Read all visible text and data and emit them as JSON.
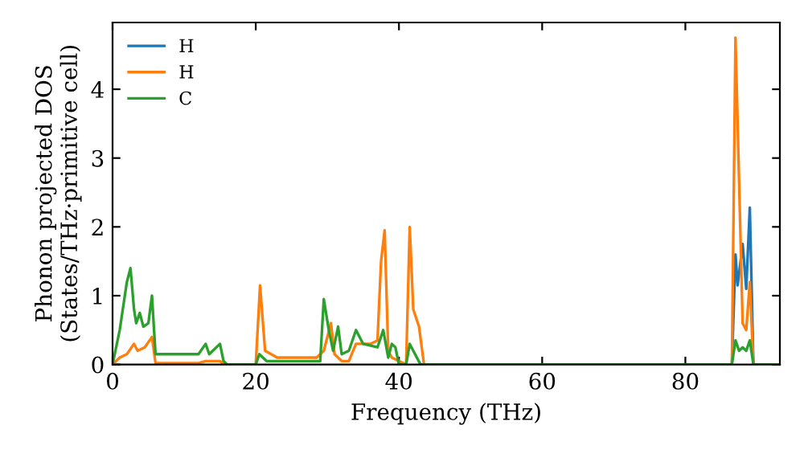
{
  "chart_data": {
    "type": "line",
    "xlabel": "Frequency (THz)",
    "ylabel": "Phonon projected DOS\n(States/THz·primitive cell)",
    "xlim": [
      0,
      93.2
    ],
    "ylim": [
      0,
      4.97
    ],
    "xticks": [
      0,
      20,
      40,
      60,
      80
    ],
    "yticks": [
      0,
      1,
      2,
      3,
      4
    ],
    "grid": false,
    "legend": "top left",
    "marker": "none",
    "line_style": "solid",
    "series": [
      {
        "name": "H",
        "color": "#1f77b4",
        "x": [
          86.5,
          87,
          87.3,
          88,
          88.5,
          89,
          89.5
        ],
        "values": [
          0,
          1.6,
          1.15,
          1.75,
          1.1,
          2.28,
          0
        ]
      },
      {
        "name": "H",
        "color": "#ff7f0e",
        "x": [
          0,
          1,
          2,
          3,
          3.5,
          4.5,
          5.5,
          6,
          12,
          13,
          15,
          15.5,
          20,
          20.6,
          21.3,
          23,
          28.5,
          29.5,
          30.5,
          31,
          32,
          33,
          34,
          36,
          37,
          37.5,
          38,
          38.5,
          39,
          40,
          41,
          41.5,
          42,
          42.8,
          43.5,
          86.5,
          87,
          88,
          88.5,
          89,
          89.5,
          93.2
        ],
        "values": [
          0,
          0.1,
          0.15,
          0.3,
          0.2,
          0.25,
          0.4,
          0.02,
          0.02,
          0.05,
          0.05,
          0,
          0,
          1.15,
          0.2,
          0.1,
          0.1,
          0.2,
          0.6,
          0.15,
          0.05,
          0.05,
          0.3,
          0.3,
          0.35,
          1.5,
          1.95,
          0.2,
          0.1,
          0.05,
          0,
          2.0,
          0.8,
          0.55,
          0,
          0,
          4.75,
          0.6,
          0.5,
          1.2,
          0,
          0
        ]
      },
      {
        "name": "C",
        "color": "#2ca02c",
        "x": [
          0,
          1,
          2,
          2.5,
          3,
          3.3,
          3.8,
          4.3,
          5,
          5.5,
          6,
          12,
          13,
          13.5,
          14,
          15,
          15.5,
          16,
          20,
          20.5,
          21.5,
          29,
          29.5,
          30.2,
          30.8,
          31.5,
          32,
          33,
          34,
          35,
          37,
          37.8,
          38.5,
          39,
          39.5,
          40,
          41,
          41.5,
          42.5,
          43,
          86.5,
          87,
          87.5,
          88,
          88.5,
          89,
          89.5,
          93.2
        ],
        "values": [
          0,
          0.5,
          1.2,
          1.4,
          0.8,
          0.6,
          0.75,
          0.55,
          0.6,
          1.0,
          0.15,
          0.15,
          0.3,
          0.15,
          0.2,
          0.3,
          0.05,
          0,
          0,
          0.15,
          0.05,
          0.05,
          0.95,
          0.5,
          0.2,
          0.55,
          0.15,
          0.2,
          0.5,
          0.3,
          0.25,
          0.5,
          0.1,
          0.3,
          0.25,
          0,
          0,
          0.3,
          0.1,
          0,
          0,
          0.35,
          0.2,
          0.25,
          0.2,
          0.35,
          0,
          0
        ]
      }
    ]
  }
}
